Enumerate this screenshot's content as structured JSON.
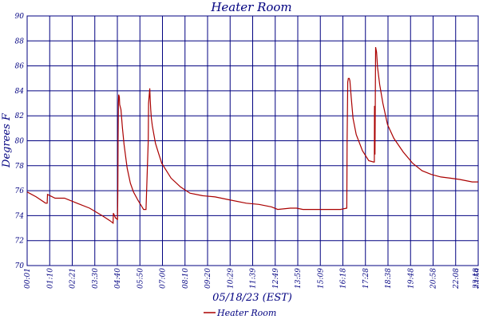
{
  "chart_data": {
    "type": "line",
    "title": "Heater Room",
    "xlabel": "05/18/23 (EST)",
    "ylabel": "Degrees F",
    "ylim": [
      70,
      90
    ],
    "yticks": [
      "70",
      "72",
      "74",
      "76",
      "78",
      "80",
      "82",
      "84",
      "86",
      "88",
      "90"
    ],
    "xticks": [
      "00:01",
      "01:10",
      "02:21",
      "03:30",
      "04:40",
      "05:50",
      "07:00",
      "08:10",
      "09:20",
      "10:29",
      "11:39",
      "12:49",
      "13:59",
      "15:09",
      "16:18",
      "17:28",
      "18:38",
      "19:48",
      "20:58",
      "22:08",
      "23:18",
      "23:59"
    ],
    "grid": true,
    "legend": "bottom-center",
    "series": [
      {
        "name": "Heater Room",
        "color": "#aa0000",
        "x_minutes": [
          1,
          30,
          60,
          65,
          66,
          90,
          120,
          160,
          200,
          240,
          265,
          275,
          276,
          283,
          284,
          288,
          289,
          290,
          291,
          292,
          293,
          295,
          296,
          300,
          305,
          310,
          320,
          330,
          340,
          355,
          365,
          372,
          380,
          387,
          388,
          392,
          393,
          395,
          397,
          400,
          410,
          420,
          430,
          460,
          490,
          520,
          560,
          600,
          640,
          700,
          740,
          780,
          800,
          840,
          860,
          880,
          900,
          960,
          1000,
          1020,
          1021,
          1023,
          1025,
          1028,
          1030,
          1034,
          1040,
          1050,
          1070,
          1090,
          1105,
          1108,
          1108.5,
          1110,
          1112,
          1115,
          1118,
          1125,
          1135,
          1150,
          1170,
          1200,
          1230,
          1260,
          1290,
          1320,
          1350,
          1380,
          1420,
          1439
        ],
        "y": [
          75.9,
          75.5,
          75.0,
          75.0,
          75.7,
          75.4,
          75.4,
          75.0,
          74.6,
          74.0,
          73.6,
          73.4,
          74.2,
          73.8,
          73.8,
          73.7,
          73.7,
          76.0,
          80.0,
          83.0,
          83.7,
          83.5,
          82.9,
          82.5,
          81.0,
          79.7,
          77.8,
          76.6,
          75.9,
          75.2,
          74.8,
          74.5,
          74.5,
          80.0,
          83.0,
          84.2,
          83.5,
          82.5,
          81.8,
          81.2,
          79.8,
          79.0,
          78.2,
          77.0,
          76.3,
          75.8,
          75.6,
          75.5,
          75.3,
          75.0,
          74.9,
          74.7,
          74.5,
          74.6,
          74.6,
          74.5,
          74.5,
          74.5,
          74.5,
          74.6,
          80.0,
          84.7,
          85.0,
          85.0,
          84.8,
          83.5,
          81.8,
          80.5,
          79.2,
          78.4,
          78.3,
          78.3,
          82.8,
          78.9,
          87.5,
          87.1,
          85.9,
          84.5,
          83.0,
          81.3,
          80.2,
          79.1,
          78.2,
          77.6,
          77.3,
          77.1,
          77.0,
          76.9,
          76.7,
          76.7
        ]
      }
    ]
  }
}
